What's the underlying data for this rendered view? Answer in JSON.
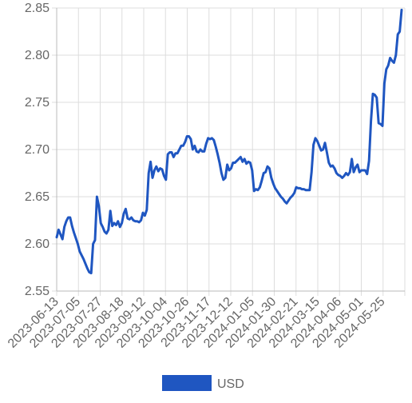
{
  "chart_data": {
    "type": "line",
    "title": "",
    "xlabel": "",
    "ylabel": "",
    "ylim": [
      2.55,
      2.85
    ],
    "y_ticks": [
      "2.55",
      "2.60",
      "2.65",
      "2.70",
      "2.75",
      "2.80",
      "2.85"
    ],
    "x_ticks": [
      "2023-06-13",
      "2023-07-05",
      "2023-07-27",
      "2023-08-18",
      "2023-09-12",
      "2023-10-04",
      "2023-10-26",
      "2023-11-17",
      "2023-12-12",
      "2024-01-05",
      "2024-01-30",
      "2024-02-21",
      "2024-03-15",
      "2024-04-06",
      "2024-05-01",
      "2024-05-25"
    ],
    "grid": true,
    "legend_position": "bottom",
    "colors": {
      "USD": "#1f56c1",
      "grid": "#dddddd",
      "axis": "#bbbbbb",
      "text": "#666666"
    },
    "series": [
      {
        "name": "USD",
        "values": [
          2.607,
          2.615,
          2.61,
          2.605,
          2.618,
          2.624,
          2.628,
          2.628,
          2.619,
          2.612,
          2.606,
          2.6,
          2.592,
          2.588,
          2.584,
          2.579,
          2.574,
          2.57,
          2.569,
          2.6,
          2.604,
          2.65,
          2.64,
          2.622,
          2.618,
          2.613,
          2.611,
          2.615,
          2.635,
          2.619,
          2.622,
          2.62,
          2.624,
          2.618,
          2.622,
          2.632,
          2.637,
          2.627,
          2.626,
          2.628,
          2.625,
          2.624,
          2.624,
          2.623,
          2.625,
          2.633,
          2.63,
          2.636,
          2.675,
          2.687,
          2.67,
          2.678,
          2.682,
          2.677,
          2.68,
          2.679,
          2.672,
          2.668,
          2.695,
          2.697,
          2.697,
          2.692,
          2.696,
          2.696,
          2.7,
          2.704,
          2.704,
          2.708,
          2.714,
          2.714,
          2.711,
          2.7,
          2.704,
          2.698,
          2.697,
          2.7,
          2.698,
          2.698,
          2.706,
          2.712,
          2.711,
          2.712,
          2.71,
          2.703,
          2.695,
          2.686,
          2.675,
          2.668,
          2.67,
          2.684,
          2.678,
          2.68,
          2.686,
          2.686,
          2.688,
          2.69,
          2.692,
          2.687,
          2.69,
          2.685,
          2.687,
          2.686,
          2.678,
          2.656,
          2.658,
          2.657,
          2.66,
          2.667,
          2.675,
          2.676,
          2.682,
          2.68,
          2.67,
          2.664,
          2.659,
          2.656,
          2.653,
          2.65,
          2.648,
          2.645,
          2.643,
          2.646,
          2.649,
          2.651,
          2.654,
          2.66,
          2.659,
          2.659,
          2.658,
          2.658,
          2.657,
          2.657,
          2.657,
          2.676,
          2.705,
          2.712,
          2.709,
          2.704,
          2.699,
          2.7,
          2.707,
          2.697,
          2.686,
          2.682,
          2.683,
          2.68,
          2.675,
          2.673,
          2.672,
          2.67,
          2.672,
          2.675,
          2.673,
          2.676,
          2.69,
          2.676,
          2.681,
          2.684,
          2.676,
          2.678,
          2.678,
          2.678,
          2.674,
          2.688,
          2.73,
          2.759,
          2.758,
          2.755,
          2.728,
          2.727,
          2.725,
          2.77,
          2.785,
          2.789,
          2.797,
          2.794,
          2.792,
          2.8,
          2.822,
          2.825,
          2.848
        ]
      }
    ]
  }
}
